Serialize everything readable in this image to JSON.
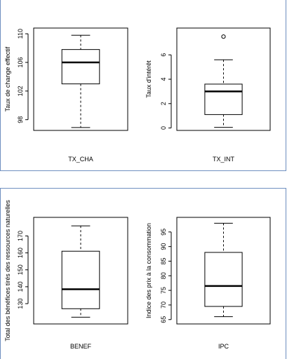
{
  "colors": {
    "panel_border": "#6f8fc0",
    "ink": "#000000"
  },
  "chart_data": [
    {
      "type": "boxplot",
      "xlabel": "TX_CHA",
      "ylabel": "Taux de change effectif",
      "ylim": [
        96.5,
        110.8
      ],
      "ticks": [
        98,
        102,
        106,
        110
      ],
      "tick_labels": [
        "98",
        "102",
        "106",
        "110"
      ],
      "stats": {
        "min": 96.9,
        "q1": 103.0,
        "median": 106.0,
        "q3": 107.8,
        "max": 109.8
      },
      "outliers": []
    },
    {
      "type": "boxplot",
      "xlabel": "TX_INT",
      "ylabel": "Taux d'intérêt",
      "ylim": [
        -0.2,
        8.2
      ],
      "ticks": [
        0,
        2,
        4,
        6
      ],
      "tick_labels": [
        "0",
        "2",
        "4",
        "6"
      ],
      "stats": {
        "min": 0.05,
        "q1": 1.1,
        "median": 3.0,
        "q3": 3.6,
        "max": 5.6
      },
      "outliers": [
        7.5
      ]
    },
    {
      "type": "boxplot",
      "xlabel": "BENEF",
      "ylabel": "Total des bénéfices tirés des ressources naturelles",
      "ylim": [
        118,
        181
      ],
      "ticks": [
        130,
        140,
        150,
        160,
        170
      ],
      "tick_labels": [
        "130",
        "140",
        "150",
        "160",
        "170"
      ],
      "stats": {
        "min": 122,
        "q1": 127,
        "median": 138.5,
        "q3": 161,
        "max": 176
      },
      "outliers": []
    },
    {
      "type": "boxplot",
      "xlabel": "IPC",
      "ylabel": "Indice des prix à la consommation",
      "ylim": [
        63.5,
        100
      ],
      "ticks": [
        65,
        70,
        75,
        80,
        85,
        90,
        95
      ],
      "tick_labels": [
        "65",
        "70",
        "75",
        "80",
        "85",
        "90",
        "95"
      ],
      "stats": {
        "min": 66,
        "q1": 69.5,
        "median": 76.5,
        "q3": 88,
        "max": 98
      },
      "outliers": []
    }
  ]
}
